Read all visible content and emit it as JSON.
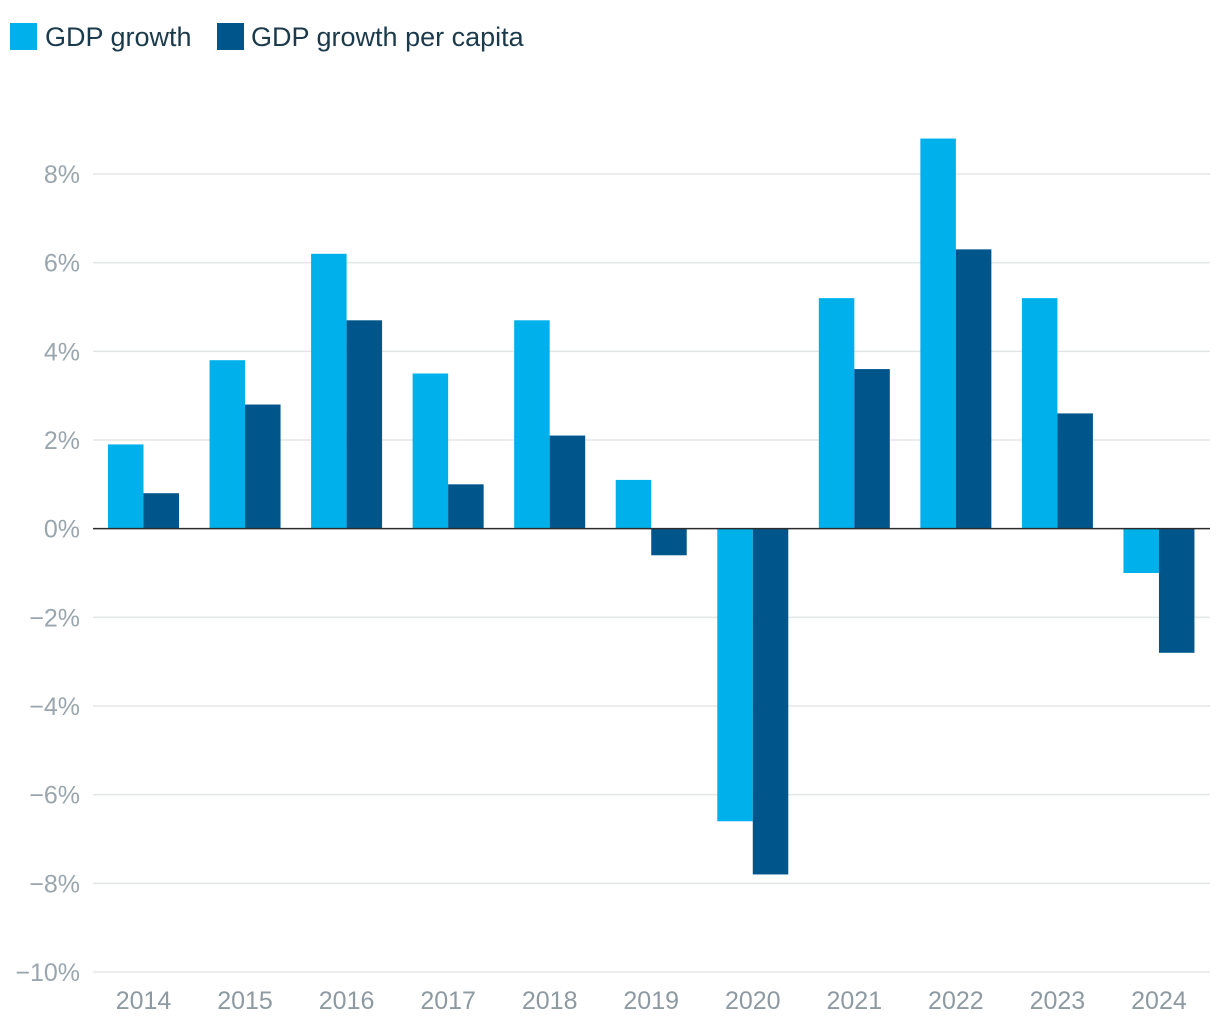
{
  "chart_data": {
    "type": "bar",
    "title": "",
    "xlabel": "",
    "ylabel": "",
    "categories": [
      "2014",
      "2015",
      "2016",
      "2017",
      "2018",
      "2019",
      "2020",
      "2021",
      "2022",
      "2023",
      "2024"
    ],
    "series": [
      {
        "name": "GDP growth",
        "color": "#00b0ea",
        "values": [
          1.9,
          3.8,
          6.2,
          3.5,
          4.7,
          1.1,
          -6.6,
          5.2,
          8.8,
          5.2,
          -1.0
        ]
      },
      {
        "name": "GDP growth per capita",
        "color": "#00568b",
        "values": [
          0.8,
          2.8,
          4.7,
          1.0,
          2.1,
          -0.6,
          -7.8,
          3.6,
          6.3,
          2.6,
          -2.8
        ]
      }
    ],
    "ylim": [
      -10,
      8
    ],
    "yticks": [
      8,
      6,
      4,
      2,
      0,
      -2,
      -4,
      -6,
      -8,
      -10
    ],
    "ytick_labels": [
      "8%",
      "6%",
      "4%",
      "2%",
      "0%",
      "−2%",
      "−4%",
      "−6%",
      "−8%",
      "−10%"
    ],
    "grid": true,
    "legend_position": "top-left"
  }
}
